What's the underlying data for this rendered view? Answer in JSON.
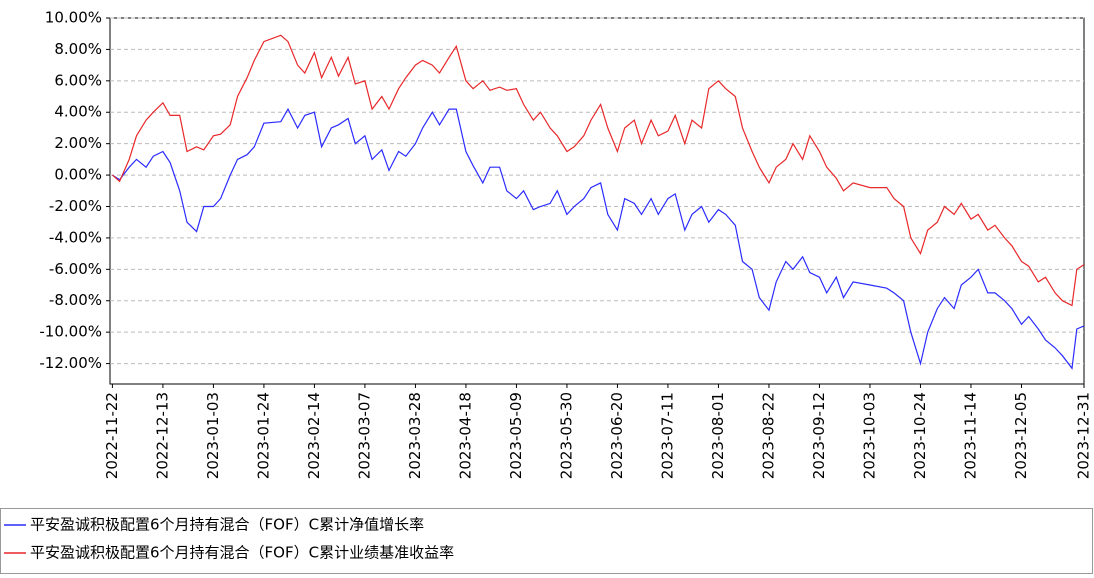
{
  "chart_data": {
    "type": "line",
    "x": [
      "2022-11-22",
      "2022-11-25",
      "2022-11-29",
      "2022-12-02",
      "2022-12-06",
      "2022-12-09",
      "2022-12-13",
      "2022-12-16",
      "2022-12-20",
      "2022-12-23",
      "2022-12-27",
      "2022-12-30",
      "2023-01-03",
      "2023-01-06",
      "2023-01-10",
      "2023-01-13",
      "2023-01-17",
      "2023-01-20",
      "2023-01-24",
      "2023-01-31",
      "2023-02-03",
      "2023-02-07",
      "2023-02-10",
      "2023-02-14",
      "2023-02-17",
      "2023-02-21",
      "2023-02-24",
      "2023-02-28",
      "2023-03-03",
      "2023-03-07",
      "2023-03-10",
      "2023-03-14",
      "2023-03-17",
      "2023-03-21",
      "2023-03-24",
      "2023-03-28",
      "2023-03-31",
      "2023-04-04",
      "2023-04-07",
      "2023-04-11",
      "2023-04-14",
      "2023-04-18",
      "2023-04-21",
      "2023-04-25",
      "2023-04-28",
      "2023-05-02",
      "2023-05-05",
      "2023-05-09",
      "2023-05-12",
      "2023-05-16",
      "2023-05-19",
      "2023-05-23",
      "2023-05-26",
      "2023-05-30",
      "2023-06-02",
      "2023-06-06",
      "2023-06-09",
      "2023-06-13",
      "2023-06-16",
      "2023-06-20",
      "2023-06-23",
      "2023-06-27",
      "2023-06-30",
      "2023-07-04",
      "2023-07-07",
      "2023-07-11",
      "2023-07-14",
      "2023-07-18",
      "2023-07-21",
      "2023-07-25",
      "2023-07-28",
      "2023-08-01",
      "2023-08-04",
      "2023-08-08",
      "2023-08-11",
      "2023-08-15",
      "2023-08-18",
      "2023-08-22",
      "2023-08-25",
      "2023-08-29",
      "2023-09-01",
      "2023-09-05",
      "2023-09-08",
      "2023-09-12",
      "2023-09-15",
      "2023-09-19",
      "2023-09-22",
      "2023-09-26",
      "2023-10-03",
      "2023-10-10",
      "2023-10-13",
      "2023-10-17",
      "2023-10-20",
      "2023-10-24",
      "2023-10-27",
      "2023-10-31",
      "2023-11-03",
      "2023-11-07",
      "2023-11-10",
      "2023-11-14",
      "2023-11-17",
      "2023-11-21",
      "2023-11-24",
      "2023-11-28",
      "2023-12-01",
      "2023-12-05",
      "2023-12-08",
      "2023-12-12",
      "2023-12-15",
      "2023-12-19",
      "2023-12-22",
      "2023-12-26",
      "2023-12-28",
      "2023-12-31"
    ],
    "series": [
      {
        "name": "平安盈诚积极配置6个月持有混合（FOF）C累计净值增长率",
        "color": "#2b2bff",
        "values": [
          0.0,
          -0.3,
          0.5,
          1.0,
          0.5,
          1.2,
          1.5,
          0.8,
          -1.0,
          -3.0,
          -3.6,
          -2.0,
          -2.0,
          -1.5,
          0.0,
          1.0,
          1.3,
          1.8,
          3.3,
          3.4,
          4.2,
          3.0,
          3.8,
          4.0,
          1.8,
          3.0,
          3.2,
          3.6,
          2.0,
          2.5,
          1.0,
          1.6,
          0.3,
          1.5,
          1.2,
          2.0,
          3.0,
          4.0,
          3.2,
          4.2,
          4.2,
          1.5,
          0.6,
          -0.5,
          0.5,
          0.5,
          -1.0,
          -1.5,
          -1.0,
          -2.2,
          -2.0,
          -1.8,
          -1.0,
          -2.5,
          -2.0,
          -1.5,
          -0.8,
          -0.5,
          -2.5,
          -3.5,
          -1.5,
          -1.8,
          -2.5,
          -1.5,
          -2.5,
          -1.5,
          -1.2,
          -3.5,
          -2.5,
          -2.0,
          -3.0,
          -2.2,
          -2.5,
          -3.2,
          -5.5,
          -6.0,
          -7.8,
          -8.6,
          -6.8,
          -5.5,
          -6.0,
          -5.2,
          -6.2,
          -6.5,
          -7.5,
          -6.5,
          -7.8,
          -6.8,
          -7.0,
          -7.2,
          -7.5,
          -8.0,
          -10.0,
          -12.0,
          -10.0,
          -8.5,
          -7.8,
          -8.5,
          -7.0,
          -6.5,
          -6.0,
          -7.5,
          -7.5,
          -8.0,
          -8.5,
          -9.5,
          -9.0,
          -9.8,
          -10.5,
          -11.0,
          -11.5,
          -12.3,
          -9.8,
          -9.6
        ]
      },
      {
        "name": "平安盈诚积极配置6个月持有混合（FOF）C累计业绩基准收益率",
        "color": "#e8282a",
        "values": [
          0.0,
          -0.4,
          1.0,
          2.5,
          3.5,
          4.0,
          4.6,
          3.8,
          3.8,
          1.5,
          1.8,
          1.6,
          2.5,
          2.6,
          3.2,
          5.0,
          6.2,
          7.3,
          8.5,
          8.9,
          8.5,
          7.0,
          6.5,
          7.8,
          6.2,
          7.5,
          6.3,
          7.5,
          5.8,
          6.0,
          4.2,
          5.0,
          4.2,
          5.5,
          6.2,
          7.0,
          7.3,
          7.0,
          6.5,
          7.5,
          8.2,
          6.0,
          5.5,
          6.0,
          5.4,
          5.6,
          5.4,
          5.5,
          4.5,
          3.5,
          4.0,
          3.0,
          2.5,
          1.5,
          1.8,
          2.5,
          3.5,
          4.5,
          3.0,
          1.5,
          3.0,
          3.5,
          2.0,
          3.5,
          2.5,
          2.8,
          3.8,
          2.0,
          3.5,
          3.0,
          5.5,
          6.0,
          5.5,
          5.0,
          3.0,
          1.5,
          0.5,
          -0.5,
          0.5,
          1.0,
          2.0,
          1.0,
          2.5,
          1.5,
          0.5,
          -0.2,
          -1.0,
          -0.5,
          -0.8,
          -0.8,
          -1.5,
          -2.0,
          -4.0,
          -5.0,
          -3.5,
          -3.0,
          -2.0,
          -2.5,
          -1.8,
          -2.8,
          -2.5,
          -3.5,
          -3.2,
          -4.0,
          -4.5,
          -5.5,
          -5.8,
          -6.8,
          -6.5,
          -7.5,
          -8.0,
          -8.3,
          -6.0,
          -5.7
        ]
      }
    ],
    "xlim": [
      "2022-11-21",
      "2023-12-31"
    ],
    "xticks": [
      "2022-11-22",
      "2022-12-13",
      "2023-01-03",
      "2023-01-24",
      "2023-02-14",
      "2023-03-07",
      "2023-03-28",
      "2023-04-18",
      "2023-05-09",
      "2023-05-30",
      "2023-06-20",
      "2023-07-11",
      "2023-08-01",
      "2023-08-22",
      "2023-09-12",
      "2023-10-03",
      "2023-10-24",
      "2023-11-14",
      "2023-12-05",
      "2023-12-31"
    ],
    "ylim": [
      -13.3,
      10
    ],
    "yticks": [
      {
        "value": 10,
        "label": "10.00%"
      },
      {
        "value": 8,
        "label": "8.00%"
      },
      {
        "value": 6,
        "label": "6.00%"
      },
      {
        "value": 4,
        "label": "4.00%"
      },
      {
        "value": 2,
        "label": "2.00%"
      },
      {
        "value": 0,
        "label": "0.00%"
      },
      {
        "value": -2,
        "label": "-2.00%"
      },
      {
        "value": -4,
        "label": "-4.00%"
      },
      {
        "value": -6,
        "label": "-6.00%"
      },
      {
        "value": -8,
        "label": "-8.00%"
      },
      {
        "value": -10,
        "label": "-10.00%"
      },
      {
        "value": -12,
        "label": "-12.00%"
      }
    ],
    "grid": true
  }
}
